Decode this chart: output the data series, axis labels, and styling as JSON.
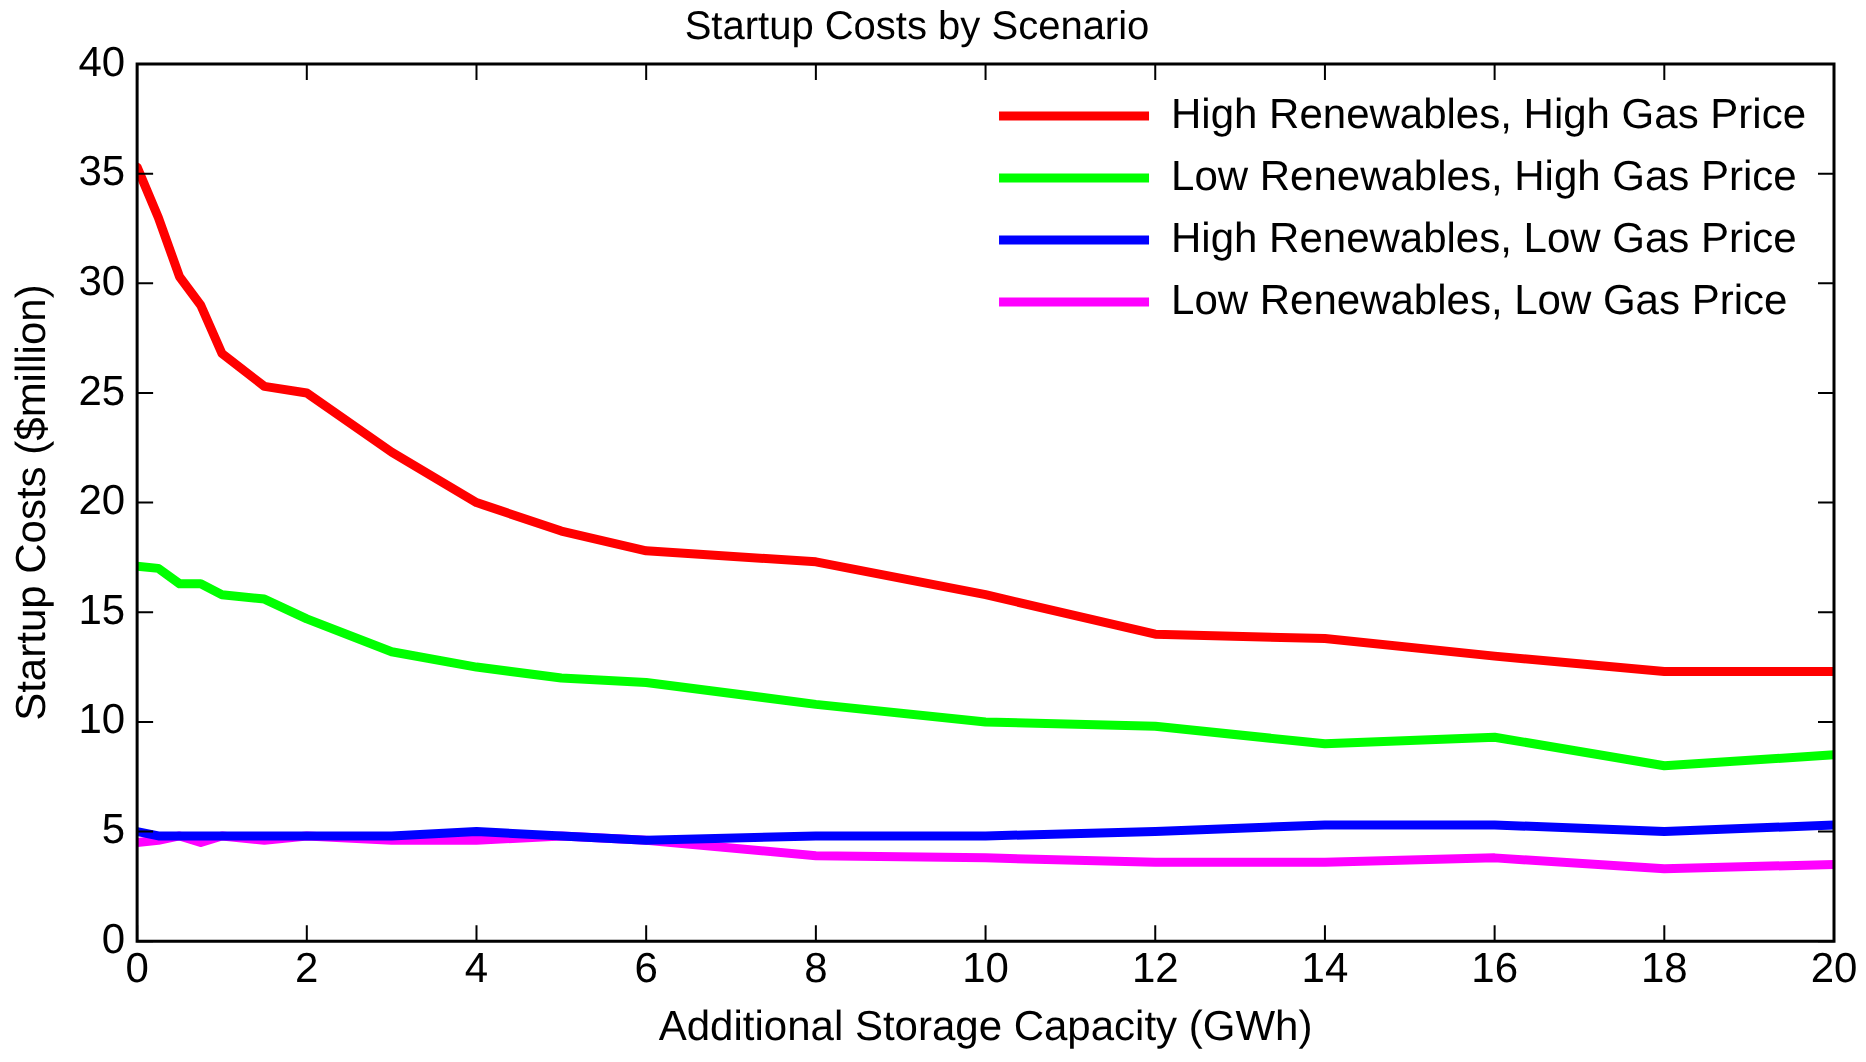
{
  "chart_data": {
    "type": "line",
    "title": "Startup Costs by Scenario",
    "xlabel": "Additional Storage Capacity (GWh)",
    "ylabel": "Startup Costs ($million)",
    "x": [
      0,
      0.25,
      0.5,
      0.75,
      1,
      1.5,
      2,
      3,
      4,
      5,
      6,
      8,
      10,
      12,
      14,
      16,
      18,
      20
    ],
    "series": [
      {
        "name": "High Renewables, High Gas Price",
        "color": "#ff0000",
        "values": [
          35.3,
          33,
          30.3,
          29,
          26.8,
          25.3,
          25.0,
          22.3,
          20,
          18.7,
          17.8,
          17.3,
          15.8,
          14,
          13.8,
          13,
          12.3,
          12.3
        ]
      },
      {
        "name": "Low Renewables, High Gas Price",
        "color": "#00ff00",
        "values": [
          17.1,
          17.0,
          16.3,
          16.3,
          15.8,
          15.6,
          14.7,
          13.2,
          12.5,
          12.0,
          11.8,
          10.8,
          10.0,
          9.8,
          9.0,
          9.3,
          8.0,
          8.5
        ]
      },
      {
        "name": "High Renewables, Low Gas Price",
        "color": "#0000ff",
        "values": [
          5.0,
          4.8,
          4.8,
          4.8,
          4.8,
          4.8,
          4.8,
          4.8,
          5.0,
          4.8,
          4.6,
          4.8,
          4.8,
          5.0,
          5.3,
          5.3,
          5.0,
          5.3
        ]
      },
      {
        "name": "Low Renewables, Low Gas Price",
        "color": "#ff00ff",
        "values": [
          4.5,
          4.6,
          4.8,
          4.5,
          4.8,
          4.6,
          4.8,
          4.6,
          4.6,
          4.8,
          4.6,
          3.9,
          3.8,
          3.6,
          3.6,
          3.8,
          3.3,
          3.5
        ]
      }
    ],
    "xlim": [
      0,
      20
    ],
    "xticks": [
      0,
      2,
      4,
      6,
      8,
      10,
      12,
      14,
      16,
      18,
      20
    ],
    "ylim": [
      0,
      40
    ],
    "yticks": [
      0,
      5,
      10,
      15,
      20,
      25,
      30,
      35,
      40
    ],
    "grid": false,
    "legend": "top right",
    "marker": "none",
    "line_style": "solid"
  }
}
